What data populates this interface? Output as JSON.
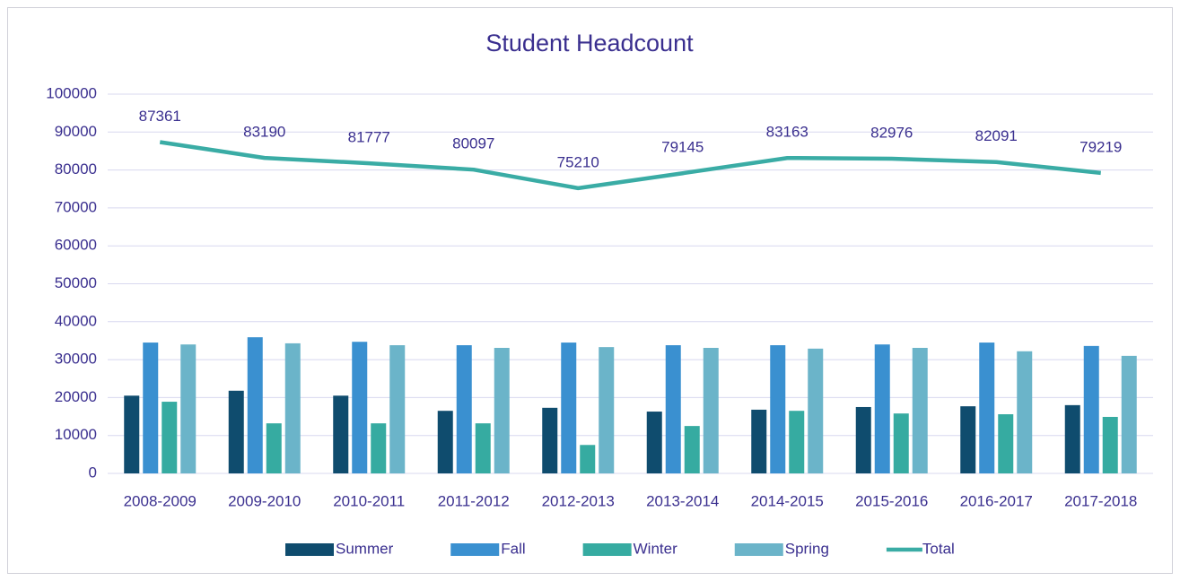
{
  "chart_data": {
    "type": "bar",
    "title": "Student Headcount",
    "categories": [
      "2008-2009",
      "2009-2010",
      "2010-2011",
      "2011-2012",
      "2012-2013",
      "2013-2014",
      "2014-2015",
      "2015-2016",
      "2016-2017",
      "2017-2018"
    ],
    "series": [
      {
        "name": "Summer",
        "type": "bar",
        "color": "#0f4c6e",
        "values": [
          20500,
          21800,
          20500,
          16500,
          17300,
          16300,
          16800,
          17500,
          17700,
          18000
        ]
      },
      {
        "name": "Fall",
        "type": "bar",
        "color": "#3a90d0",
        "values": [
          34500,
          35900,
          34700,
          33800,
          34500,
          33800,
          33800,
          34000,
          34500,
          33600
        ]
      },
      {
        "name": "Winter",
        "type": "bar",
        "color": "#36aba1",
        "values": [
          18900,
          13200,
          13200,
          13200,
          7500,
          12500,
          16500,
          15800,
          15600,
          14900
        ]
      },
      {
        "name": "Spring",
        "type": "bar",
        "color": "#6bb4c9",
        "values": [
          34000,
          34300,
          33800,
          33100,
          33300,
          33100,
          32900,
          33100,
          32200,
          31000
        ]
      },
      {
        "name": "Total",
        "type": "line",
        "color": "#3aaca5",
        "values": [
          87361,
          83190,
          81777,
          80097,
          75210,
          79145,
          83163,
          82976,
          82091,
          79219
        ],
        "data_labels": true
      }
    ],
    "ylim": [
      0,
      100000
    ],
    "yticks": [
      0,
      10000,
      20000,
      30000,
      40000,
      50000,
      60000,
      70000,
      80000,
      90000,
      100000
    ],
    "grid": true,
    "legend": "bottom"
  }
}
